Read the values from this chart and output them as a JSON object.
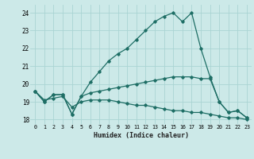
{
  "xlabel": "Humidex (Indice chaleur)",
  "bg_color": "#cce9e8",
  "grid_color": "#aad4d3",
  "line_color": "#1e6e65",
  "xlim": [
    -0.5,
    23.5
  ],
  "ylim": [
    17.75,
    24.45
  ],
  "xticks": [
    0,
    1,
    2,
    3,
    4,
    5,
    6,
    7,
    8,
    9,
    10,
    11,
    12,
    13,
    14,
    15,
    16,
    17,
    18,
    19,
    20,
    21,
    22,
    23
  ],
  "yticks": [
    18,
    19,
    20,
    21,
    22,
    23,
    24
  ],
  "series1": [
    19.6,
    19.0,
    19.4,
    19.4,
    18.3,
    19.3,
    20.1,
    20.7,
    21.3,
    21.7,
    22.0,
    22.5,
    23.0,
    23.5,
    23.8,
    24.0,
    23.5,
    24.0,
    22.0,
    20.4,
    19.0,
    18.4,
    18.5,
    18.1
  ],
  "series2": [
    19.6,
    19.0,
    19.4,
    19.4,
    18.3,
    19.3,
    19.5,
    19.6,
    19.7,
    19.8,
    19.9,
    20.0,
    20.1,
    20.2,
    20.3,
    20.4,
    20.4,
    20.4,
    20.3,
    20.3,
    19.0,
    18.4,
    18.5,
    18.1
  ],
  "series3": [
    19.6,
    19.1,
    19.2,
    19.3,
    18.7,
    19.0,
    19.1,
    19.1,
    19.1,
    19.0,
    18.9,
    18.8,
    18.8,
    18.7,
    18.6,
    18.5,
    18.5,
    18.4,
    18.4,
    18.3,
    18.2,
    18.1,
    18.1,
    18.0
  ]
}
